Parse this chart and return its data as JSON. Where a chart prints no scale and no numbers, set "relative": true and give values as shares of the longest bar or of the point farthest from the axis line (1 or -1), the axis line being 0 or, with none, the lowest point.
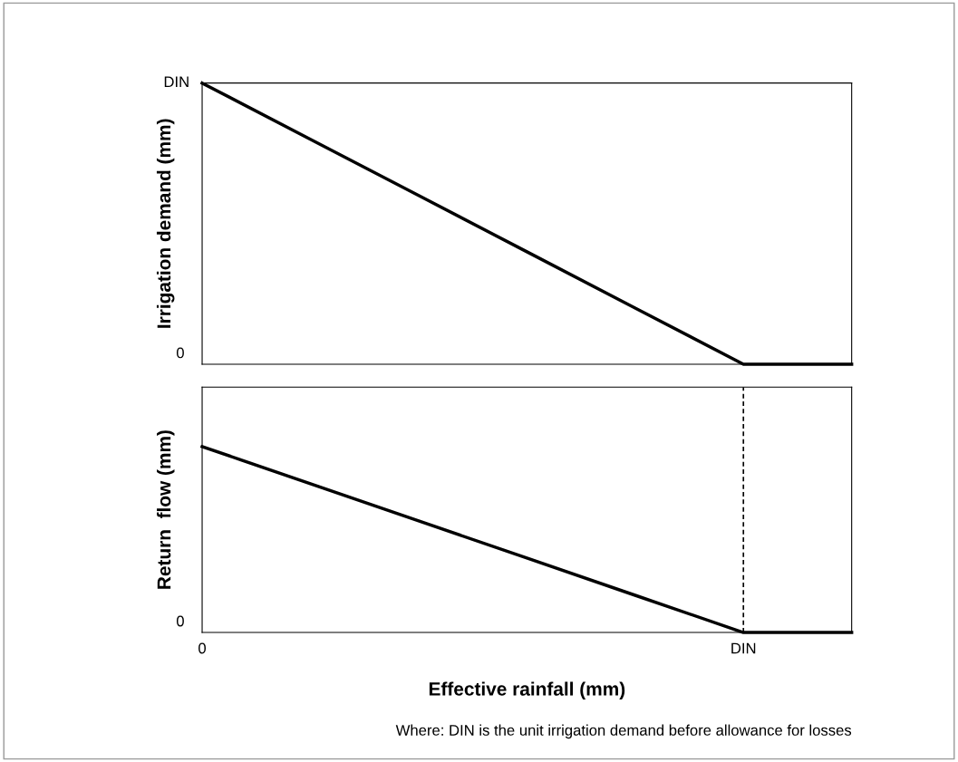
{
  "chart_data": [
    {
      "type": "line",
      "ylabel": "Irrigation demand (mm)",
      "categories": [
        null,
        null,
        null,
        null,
        null,
        null,
        null
      ],
      "series": [
        {
          "color": "#000000",
          "values": [
            1,
            0.8,
            0.6,
            0.4,
            0.2,
            0,
            0
          ]
        }
      ],
      "relative": true,
      "tick_labels": false,
      "annotations": [
        "DIN",
        "0"
      ]
    },
    {
      "type": "line",
      "ylabel": "Return  flow (mm)",
      "xlabel": "Effective rainfall (mm)",
      "categories": [
        "0",
        null,
        null,
        null,
        null,
        "DIN",
        null
      ],
      "series": [
        {
          "color": "#000000",
          "values": [
            1,
            0.8,
            0.6,
            0.4,
            0.2,
            0,
            0
          ]
        }
      ],
      "relative": true,
      "tick_labels": "x",
      "ref_lines": [
        {
          "axis": "x",
          "value": "DIN",
          "line_style": "dashed",
          "color": "#000000"
        }
      ],
      "annotations": [
        "0",
        "Where: DIN is the unit irrigation demand before allowance for losses"
      ]
    }
  ]
}
